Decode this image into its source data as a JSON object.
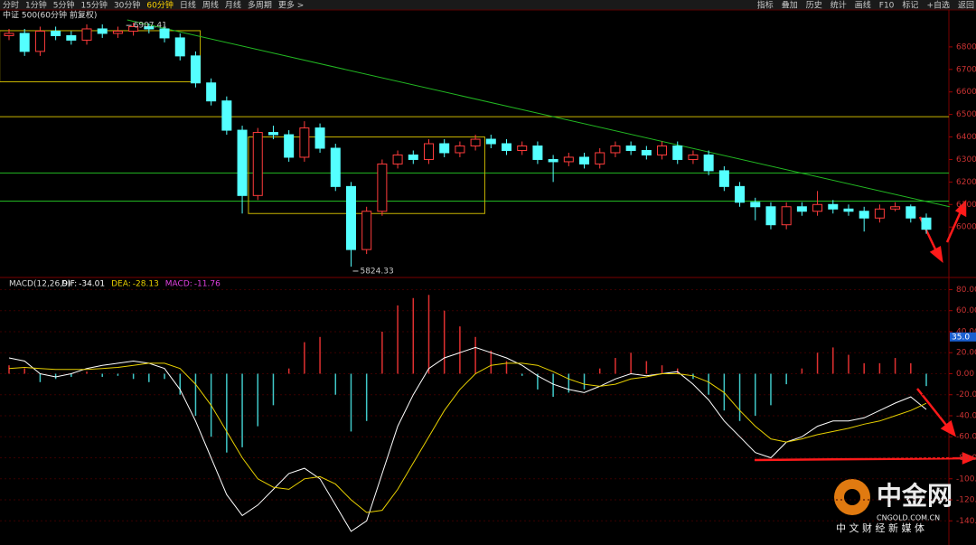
{
  "toolbar": {
    "periods": [
      "分时",
      "1分钟",
      "5分钟",
      "15分钟",
      "30分钟",
      "60分钟",
      "日线",
      "周线",
      "月线",
      "多周期",
      "更多 >"
    ],
    "tools": [
      "指标",
      "叠加",
      "历史",
      "统计",
      "画线",
      "F10",
      "标记",
      "+自选",
      "返回"
    ]
  },
  "watermark": {
    "brand": "中金网",
    "site": "CNGOLD.COM.CN",
    "slogan": "中 文 财 经 新 媒 体"
  },
  "chart_data": [
    {
      "type": "candlestick",
      "title": "中证 500(60分钟 前复权)",
      "open": [
        6850,
        6860,
        6780,
        6870,
        6850,
        6830,
        6880,
        6860,
        6870,
        6890,
        6880,
        6840,
        6760,
        6640,
        6560,
        6430,
        6140,
        6420,
        6410,
        6310,
        6440,
        6350,
        6180,
        5900,
        6070,
        6280,
        6320,
        6300,
        6370,
        6330,
        6360,
        6390,
        6370,
        6340,
        6360,
        6300,
        6290,
        6310,
        6280,
        6330,
        6360,
        6340,
        6320,
        6360,
        6300,
        6320,
        6250,
        6180,
        6110,
        6090,
        6010,
        6090,
        6070,
        6100,
        6080,
        6070,
        6040,
        6080,
        6090,
        6040
      ],
      "high": [
        6880,
        6880,
        6890,
        6890,
        6870,
        6900,
        6900,
        6890,
        6907.41,
        6905,
        6900,
        6860,
        6780,
        6660,
        6580,
        6450,
        6440,
        6450,
        6430,
        6470,
        6460,
        6370,
        6200,
        6090,
        6300,
        6340,
        6340,
        6390,
        6390,
        6380,
        6410,
        6410,
        6390,
        6380,
        6380,
        6320,
        6330,
        6330,
        6350,
        6380,
        6380,
        6360,
        6380,
        6380,
        6340,
        6340,
        6270,
        6200,
        6130,
        6110,
        6110,
        6110,
        6160,
        6120,
        6100,
        6090,
        6100,
        6110,
        6100,
        6060
      ],
      "low": [
        6830,
        6760,
        6760,
        6830,
        6810,
        6810,
        6840,
        6840,
        6850,
        6860,
        6820,
        6740,
        6620,
        6540,
        6410,
        6060,
        6120,
        6390,
        6290,
        6290,
        6330,
        6160,
        5824.33,
        5880,
        6050,
        6260,
        6280,
        6280,
        6310,
        6310,
        6340,
        6350,
        6320,
        6320,
        6280,
        6200,
        6270,
        6260,
        6260,
        6310,
        6320,
        6300,
        6300,
        6280,
        6280,
        6230,
        6160,
        6090,
        6030,
        5990,
        5990,
        6050,
        6050,
        6060,
        6050,
        5980,
        6020,
        6070,
        6020,
        5970
      ],
      "close": [
        6860,
        6780,
        6870,
        6850,
        6830,
        6880,
        6860,
        6870,
        6890,
        6880,
        6840,
        6760,
        6640,
        6560,
        6430,
        6140,
        6420,
        6410,
        6310,
        6440,
        6350,
        6180,
        5900,
        6070,
        6280,
        6320,
        6300,
        6370,
        6330,
        6360,
        6390,
        6370,
        6340,
        6360,
        6300,
        6290,
        6310,
        6280,
        6330,
        6360,
        6340,
        6320,
        6360,
        6300,
        6320,
        6250,
        6180,
        6110,
        6090,
        6010,
        6090,
        6070,
        6100,
        6080,
        6070,
        6040,
        6080,
        6090,
        6040,
        5990
      ],
      "up_color": "#ff3c3c",
      "down_color": "#54ffff",
      "ylim": [
        5784,
        6920
      ],
      "yticks": [
        6000,
        6100,
        6200,
        6300,
        6400,
        6500,
        6600,
        6700,
        6800
      ],
      "hlines": [
        {
          "value": 6490,
          "color": "#c8b400"
        },
        {
          "value": 6240,
          "color": "#22b822"
        },
        {
          "value": 6115,
          "color": "#22b822"
        }
      ],
      "boxes": [
        {
          "from_index": -0.6,
          "to_index": 12.3,
          "top": 6872,
          "bottom": 6645,
          "color": "#c8b400"
        },
        {
          "from_index": 15.4,
          "to_index": 30.6,
          "top": 6400,
          "bottom": 6060,
          "color": "#c8b400"
        }
      ],
      "trendline": {
        "from_index": 7.6,
        "from_value": 6920,
        "to_index": 60.5,
        "to_value": 6090,
        "color": "#22b822"
      }
    },
    {
      "type": "macd",
      "title": "MACD(12,26,9)",
      "histogram": {
        "name": "MACD:",
        "up_color": "#e03030",
        "down_color": "#40c8c8",
        "values": [
          8,
          5,
          -8,
          -5,
          -3,
          2,
          -3,
          -2,
          -5,
          -8,
          -5,
          -20,
          -40,
          -60,
          -75,
          -70,
          -50,
          -30,
          5,
          30,
          35,
          -20,
          -55,
          -45,
          40,
          65,
          72,
          75,
          60,
          45,
          35,
          22,
          12,
          -2,
          -15,
          -22,
          -18,
          -15,
          5,
          15,
          20,
          12,
          8,
          5,
          -5,
          -20,
          -35,
          -45,
          -40,
          -30,
          -10,
          5,
          20,
          25,
          18,
          10,
          10,
          15,
          10,
          -11.76
        ]
      },
      "series": [
        {
          "name": "DIF:",
          "color": "#ffffff",
          "values": [
            15,
            12,
            0,
            -3,
            0,
            5,
            8,
            10,
            12,
            10,
            5,
            -15,
            -45,
            -80,
            -115,
            -135,
            -125,
            -110,
            -95,
            -90,
            -100,
            -125,
            -150,
            -140,
            -95,
            -50,
            -20,
            5,
            15,
            20,
            25,
            20,
            15,
            8,
            -2,
            -10,
            -15,
            -18,
            -12,
            -5,
            0,
            -2,
            0,
            2,
            -10,
            -25,
            -45,
            -60,
            -75,
            -80,
            -65,
            -60,
            -50,
            -45,
            -45,
            -42,
            -35,
            -28,
            -22,
            -34.01
          ]
        },
        {
          "name": "DEA:",
          "color": "#e8d000",
          "values": [
            5,
            6,
            5,
            4,
            4,
            4,
            5,
            6,
            8,
            10,
            10,
            5,
            -10,
            -30,
            -55,
            -80,
            -100,
            -108,
            -110,
            -100,
            -98,
            -105,
            -120,
            -132,
            -130,
            -110,
            -85,
            -60,
            -35,
            -15,
            0,
            8,
            10,
            10,
            8,
            2,
            -5,
            -10,
            -12,
            -10,
            -5,
            -3,
            0,
            0,
            -2,
            -8,
            -18,
            -35,
            -50,
            -62,
            -65,
            -62,
            -58,
            -55,
            -52,
            -48,
            -45,
            -40,
            -35,
            -28.13
          ]
        }
      ],
      "ylim": [
        -163,
        89
      ],
      "yticks": [
        {
          "value": 80,
          "label": "80.00"
        },
        {
          "value": 60,
          "label": "60.00"
        },
        {
          "value": 40,
          "label": "40.00"
        },
        {
          "value": 20,
          "label": "20.00"
        },
        {
          "value": 0,
          "label": "0.00"
        },
        {
          "value": -20,
          "label": "-20.00"
        },
        {
          "value": -40,
          "label": "-40.00"
        },
        {
          "value": -60,
          "label": "-60.00"
        },
        {
          "value": -80,
          "label": "-80.00"
        },
        {
          "value": -100,
          "label": "-100.00"
        },
        {
          "value": -120,
          "label": "-120.00"
        },
        {
          "value": -140,
          "label": "-140.00"
        }
      ],
      "marker": {
        "value": 35,
        "label": "35.0",
        "color": "#1a5fd0"
      }
    }
  ]
}
